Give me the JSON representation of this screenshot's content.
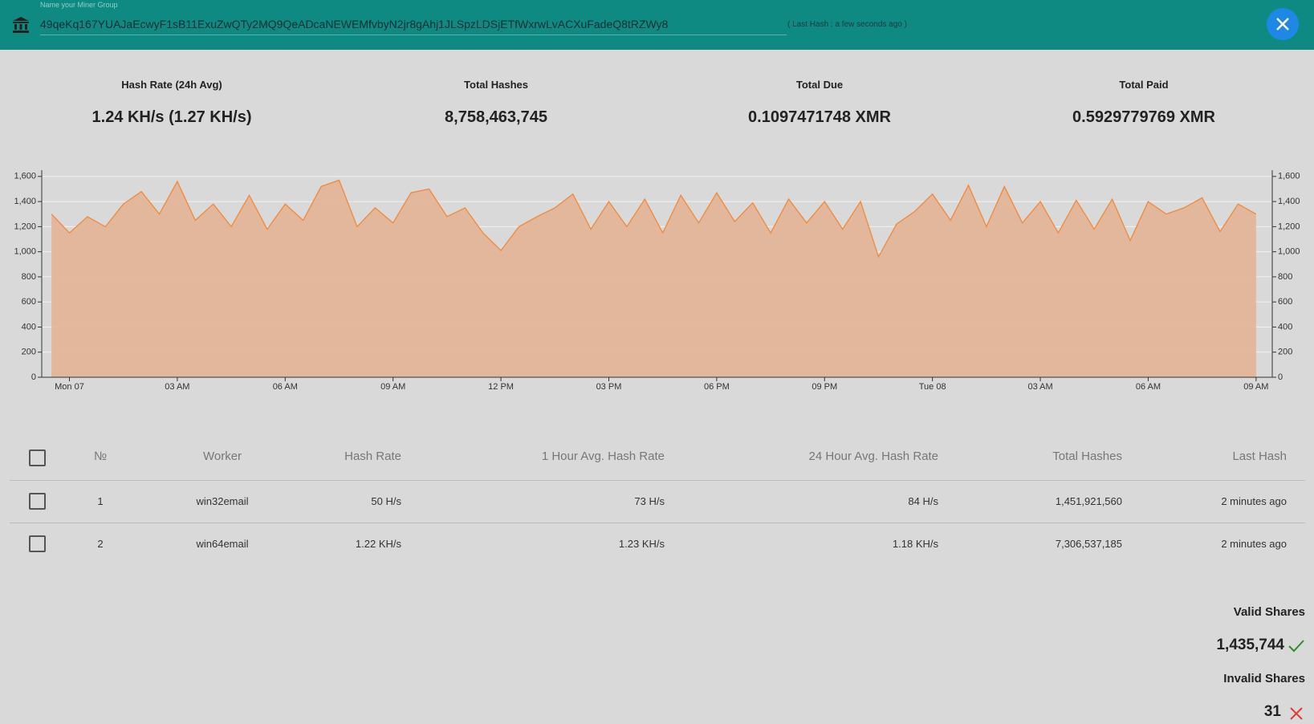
{
  "header": {
    "placeholder": "Name your Miner Group",
    "address": "49qeKq167YUAJaEcwyF1sB11ExuZwQTy2MQ9QeADcaNEWEMfvbyN2jr8gAhj1JLSpzLDSjETfWxrwLvACXuFadeQ8tRZWy8",
    "last_hash": "( Last Hash : a few seconds ago )"
  },
  "stats": [
    {
      "label": "Hash Rate (24h Avg)",
      "value": "1.24 KH/s (1.27 KH/s)"
    },
    {
      "label": "Total Hashes",
      "value": "8,758,463,745"
    },
    {
      "label": "Total Due",
      "value": "0.1097471748 XMR"
    },
    {
      "label": "Total Paid",
      "value": "0.5929779769 XMR"
    }
  ],
  "chart_data": {
    "type": "area",
    "color": "#f0893c",
    "fill": "#e3b393",
    "grid": true,
    "x": [
      -0.5,
      0,
      0.5,
      1,
      1.5,
      2,
      2.5,
      3,
      3.5,
      4,
      4.5,
      5,
      5.5,
      6,
      6.5,
      7,
      7.5,
      8,
      8.5,
      9,
      9.5,
      10,
      10.5,
      11,
      11.5,
      12,
      12.5,
      13,
      13.5,
      14,
      14.5,
      15,
      15.5,
      16,
      16.5,
      17,
      17.5,
      18,
      18.5,
      19,
      19.5,
      20,
      20.5,
      21,
      21.5,
      22,
      22.5,
      23,
      23.5,
      24,
      24.5,
      25,
      25.5,
      26,
      26.5,
      27,
      27.5,
      28,
      28.5,
      29,
      29.5,
      30,
      30.5,
      31,
      31.5,
      32,
      32.5,
      33
    ],
    "values": [
      1300,
      1150,
      1280,
      1200,
      1380,
      1480,
      1300,
      1560,
      1250,
      1380,
      1200,
      1450,
      1180,
      1380,
      1250,
      1520,
      1570,
      1200,
      1350,
      1230,
      1470,
      1500,
      1280,
      1350,
      1150,
      1010,
      1200,
      1280,
      1350,
      1460,
      1180,
      1400,
      1200,
      1420,
      1150,
      1450,
      1230,
      1470,
      1240,
      1390,
      1150,
      1420,
      1230,
      1400,
      1180,
      1400,
      960,
      1220,
      1320,
      1460,
      1250,
      1530,
      1200,
      1520,
      1230,
      1400,
      1150,
      1410,
      1180,
      1420,
      1090,
      1400,
      1300,
      1350,
      1430,
      1160,
      1380,
      1300
    ],
    "xlim": [
      -0.77,
      33.45
    ],
    "xticks": [
      {
        "value": 0,
        "label": "Mon 07"
      },
      {
        "value": 3,
        "label": "03 AM"
      },
      {
        "value": 6,
        "label": "06 AM"
      },
      {
        "value": 9,
        "label": "09 AM"
      },
      {
        "value": 12,
        "label": "12 PM"
      },
      {
        "value": 15,
        "label": "03 PM"
      },
      {
        "value": 18,
        "label": "06 PM"
      },
      {
        "value": 21,
        "label": "09 PM"
      },
      {
        "value": 24,
        "label": "Tue 08"
      },
      {
        "value": 27,
        "label": "03 AM"
      },
      {
        "value": 30,
        "label": "06 AM"
      },
      {
        "value": 33,
        "label": "09 AM"
      }
    ],
    "ylim": [
      0,
      1650
    ],
    "yticks": [
      0,
      200,
      400,
      600,
      800,
      {
        "value": 1000,
        "label": "1,000"
      },
      {
        "value": 1200,
        "label": "1,200"
      },
      {
        "value": 1400,
        "label": "1,400"
      },
      {
        "value": 1600,
        "label": "1,600"
      }
    ]
  },
  "table": {
    "headers": [
      "№",
      "Worker",
      "Hash Rate",
      "1 Hour Avg. Hash Rate",
      "24 Hour Avg. Hash Rate",
      "Total Hashes",
      "Last Hash"
    ],
    "rows": [
      [
        "1",
        "win32email",
        "50 H/s",
        "73 H/s",
        "84 H/s",
        "1,451,921,560",
        "2 minutes ago"
      ],
      [
        "2",
        "win64email",
        "1.22 KH/s",
        "1.23 KH/s",
        "1.18 KH/s",
        "7,306,537,185",
        "2 minutes ago"
      ]
    ]
  },
  "shares": {
    "valid_label": "Valid Shares",
    "valid_value": "1,435,744",
    "invalid_label": "Invalid Shares",
    "invalid_value": "31"
  }
}
